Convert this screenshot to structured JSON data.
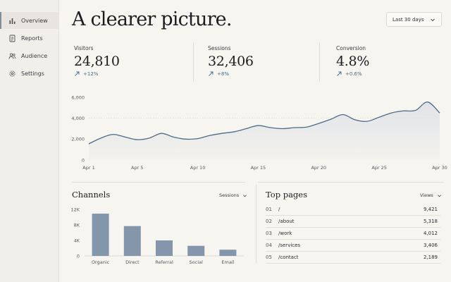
{
  "sidebar": {
    "items": [
      {
        "label": "Overview",
        "icon": "bar-chart-icon",
        "active": true
      },
      {
        "label": "Reports",
        "icon": "document-icon",
        "active": false
      },
      {
        "label": "Audience",
        "icon": "users-icon",
        "active": false
      },
      {
        "label": "Settings",
        "icon": "gear-icon",
        "active": false
      }
    ]
  },
  "header": {
    "title": "A clearer picture.",
    "range": "Last 30 days"
  },
  "stats": [
    {
      "label": "Visitors",
      "value": "24,810",
      "delta": "+12%"
    },
    {
      "label": "Sessions",
      "value": "32,406",
      "delta": "+8%"
    },
    {
      "label": "Conversion",
      "value": "4.8%",
      "delta": "+0.6%"
    }
  ],
  "colors": {
    "accent": "#4a6b86",
    "bar": "#8396ab",
    "area_fill": "#dfe2e6",
    "line": "#4e6b88"
  },
  "chart_data": [
    {
      "type": "area",
      "x_labels": [
        "Apr 1",
        "Apr 5",
        "Apr 10",
        "Apr 15",
        "Apr 20",
        "Apr 25",
        "Apr 30"
      ],
      "x": [
        1,
        2,
        3,
        4,
        5,
        6,
        7,
        8,
        9,
        10,
        11,
        12,
        13,
        14,
        15,
        16,
        17,
        18,
        19,
        20,
        21,
        22,
        23,
        24,
        25,
        26,
        27,
        28,
        29,
        30
      ],
      "values": [
        1550,
        2100,
        2450,
        2200,
        1950,
        2100,
        2550,
        2200,
        2000,
        2050,
        2350,
        2550,
        2700,
        3000,
        3300,
        3100,
        3000,
        3100,
        3150,
        3500,
        3900,
        4350,
        3850,
        3700,
        4100,
        4500,
        4700,
        4750,
        5550,
        4500
      ],
      "y_ticks": [
        "0",
        "2,000",
        "4,000",
        "6,000"
      ],
      "ylim": [
        0,
        6000
      ],
      "grid": false
    },
    {
      "type": "bar",
      "title": "Channels",
      "selector": "Sessions",
      "categories": [
        "Organic",
        "Direct",
        "Referral",
        "Social",
        "Email"
      ],
      "values": [
        10900,
        7700,
        4000,
        2600,
        1600
      ],
      "y_ticks": [
        "12K",
        "8K",
        "4K",
        "0"
      ],
      "ylim": [
        0,
        12000
      ]
    }
  ],
  "top_pages": {
    "title": "Top pages",
    "selector": "Views",
    "rows": [
      {
        "num": "01",
        "path": "/",
        "views": "9,421"
      },
      {
        "num": "02",
        "path": "/about",
        "views": "5,318"
      },
      {
        "num": "03",
        "path": "/work",
        "views": "4,012"
      },
      {
        "num": "04",
        "path": "/services",
        "views": "3,406"
      },
      {
        "num": "05",
        "path": "/contact",
        "views": "2,189"
      }
    ]
  }
}
